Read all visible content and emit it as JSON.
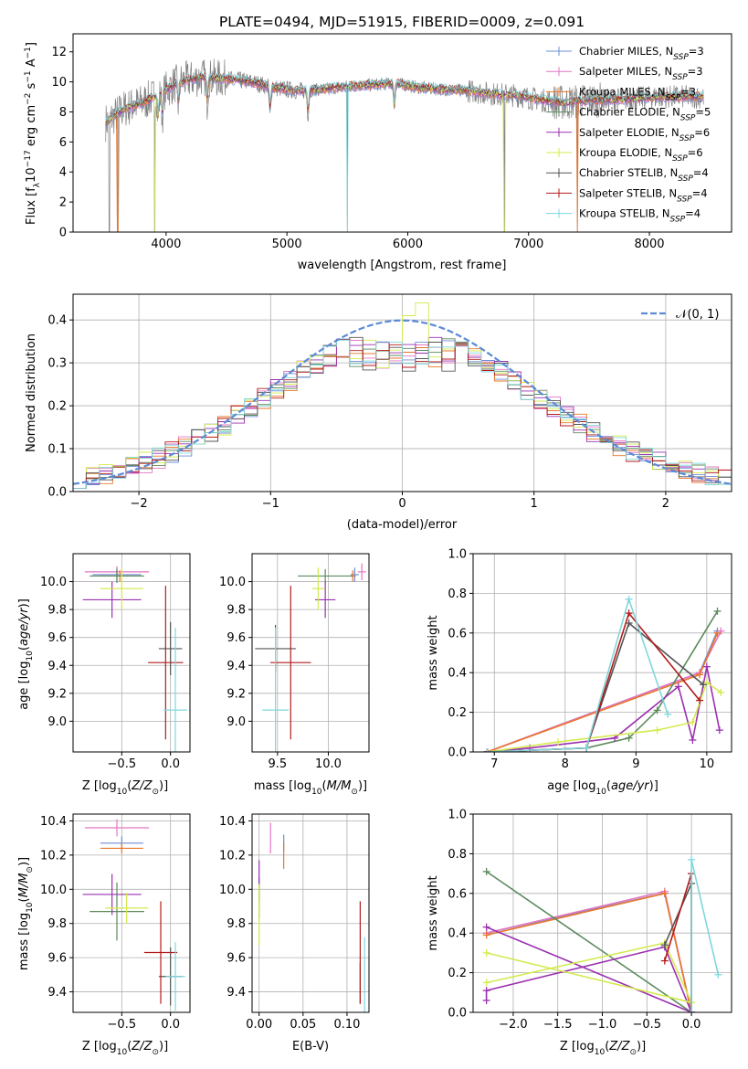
{
  "figure": {
    "title": "PLATE=0494, MJD=51915, FIBERID=0009, z=0.091"
  },
  "colors": {
    "spectrum": "#808080",
    "gaussian": "#5b8ad7",
    "series": [
      "#6b8fd6",
      "#e377c2",
      "#e8762b",
      "#5c8a5c",
      "#9b30b0",
      "#d4ea4e",
      "#555555",
      "#b31b1b",
      "#7fd7dc"
    ]
  },
  "chart_data": [
    {
      "type": "line",
      "id": "spectrum",
      "title": "PLATE=0494, MJD=51915, FIBERID=0009, z=0.091",
      "xlabel": "wavelength [Angstrom, rest frame]",
      "ylabel": "Flux [f_λ 10^−17 erg cm^−2 s^−1 A^−1]",
      "xlim": [
        3230,
        8680
      ],
      "ylim": [
        0,
        13.2
      ],
      "xticks": [
        4000,
        5000,
        6000,
        7000,
        8000
      ],
      "yticks": [
        0,
        2,
        4,
        6,
        8,
        10,
        12
      ],
      "grid": false,
      "legend_position": "top-right",
      "legend": [
        "Chabrier MILES, N_SSP=3",
        "Salpeter MILES, N_SSP=3",
        "Kroupa MILES, N_SSP=3",
        "Chabrier ELODIE, N_SSP=5",
        "Salpeter ELODIE, N_SSP=6",
        "Kroupa ELODIE, N_SSP=6",
        "Chabrier STELIB, N_SSP=4",
        "Salpeter STELIB, N_SSP=4",
        "Kroupa STELIB, N_SSP=4"
      ],
      "continuum": [
        [
          3500,
          7.3
        ],
        [
          3650,
          8.2
        ],
        [
          3800,
          8.6
        ],
        [
          3950,
          9.2
        ],
        [
          4100,
          10.0
        ],
        [
          4300,
          10.3
        ],
        [
          4500,
          10.2
        ],
        [
          4700,
          10.0
        ],
        [
          4900,
          9.6
        ],
        [
          5100,
          9.4
        ],
        [
          5300,
          9.5
        ],
        [
          5500,
          9.7
        ],
        [
          5700,
          9.8
        ],
        [
          5900,
          9.9
        ],
        [
          6100,
          9.6
        ],
        [
          6300,
          9.5
        ],
        [
          6500,
          9.4
        ],
        [
          6700,
          9.2
        ],
        [
          6900,
          9.1
        ],
        [
          7100,
          8.8
        ],
        [
          7300,
          8.6
        ],
        [
          7500,
          8.8
        ],
        [
          7700,
          8.8
        ],
        [
          7900,
          8.9
        ],
        [
          8100,
          9.0
        ],
        [
          8300,
          9.0
        ],
        [
          8450,
          9.0
        ]
      ],
      "absorption_lines": [
        3934,
        3969,
        4102,
        4340,
        4861,
        5175,
        5890
      ],
      "spikes_to_zero": [
        3530,
        3600,
        3905,
        5500,
        6800,
        7405
      ]
    },
    {
      "type": "line",
      "id": "residuals",
      "xlabel": "(data-model)/error",
      "ylabel": "Normed distribution",
      "xlim": [
        -2.5,
        2.5
      ],
      "ylim": [
        0,
        0.46
      ],
      "xticks": [
        -2,
        -1,
        0,
        1,
        2
      ],
      "yticks": [
        0.0,
        0.1,
        0.2,
        0.3,
        0.4
      ],
      "grid": true,
      "legend_position": "top-right",
      "legend": [
        "𝒩(0, 1)"
      ],
      "histogram": {
        "bin_start": -2.5,
        "bin_width": 0.1,
        "bins": 50,
        "series_count": 9
      }
    },
    {
      "type": "scatter",
      "id": "age-vs-Z",
      "xlabel": "Z [log10(Z/Z⊙)]",
      "ylabel": "age  [log10(age/yr)]",
      "xlim": [
        -1.0,
        0.2
      ],
      "ylim": [
        8.78,
        10.2
      ],
      "xticks": [
        -0.5,
        0.0
      ],
      "yticks": [
        9.0,
        9.2,
        9.4,
        9.6,
        9.8,
        10.0
      ],
      "grid": true,
      "points": [
        {
          "series": 0,
          "x": -0.55,
          "y": 10.05,
          "xerr": 0.25,
          "yerr": 0.05
        },
        {
          "series": 1,
          "x": -0.55,
          "y": 10.07,
          "xerr": 0.33,
          "yerr": 0.04
        },
        {
          "series": 2,
          "x": -0.52,
          "y": 10.04,
          "xerr": 0.22,
          "yerr": 0.04
        },
        {
          "series": 3,
          "x": -0.55,
          "y": 10.04,
          "xerr": 0.28,
          "yerr": 0.05
        },
        {
          "series": 4,
          "x": -0.6,
          "y": 9.87,
          "xerr": 0.3,
          "yerr": 0.13
        },
        {
          "series": 5,
          "x": -0.5,
          "y": 9.95,
          "xerr": 0.22,
          "yerr": 0.15
        },
        {
          "series": 6,
          "x": 0.0,
          "y": 9.52,
          "xerr": 0.12,
          "yerr": 0.19
        },
        {
          "series": 7,
          "x": -0.05,
          "y": 9.42,
          "xerr": 0.18,
          "yerr": 0.55
        },
        {
          "series": 8,
          "x": 0.05,
          "y": 9.08,
          "xerr": 0.12,
          "yerr": 0.59
        }
      ]
    },
    {
      "type": "scatter",
      "id": "age-vs-mass",
      "xlabel": "mass [log10(M/M⊙)]",
      "ylabel": "",
      "xlim": [
        9.25,
        10.4
      ],
      "ylim": [
        8.78,
        10.2
      ],
      "xticks": [
        9.5,
        10.0
      ],
      "yticks": [
        9.0,
        9.2,
        9.4,
        9.6,
        9.8,
        10.0
      ],
      "grid": true,
      "points": [
        {
          "series": 0,
          "x": 10.26,
          "y": 10.05,
          "xerr": 0.04,
          "yerr": 0.05
        },
        {
          "series": 1,
          "x": 10.33,
          "y": 10.07,
          "xerr": 0.04,
          "yerr": 0.06
        },
        {
          "series": 2,
          "x": 10.24,
          "y": 10.04,
          "xerr": 0.03,
          "yerr": 0.04
        },
        {
          "series": 3,
          "x": 9.97,
          "y": 10.04,
          "xerr": 0.27,
          "yerr": 0.05
        },
        {
          "series": 4,
          "x": 9.97,
          "y": 9.87,
          "xerr": 0.1,
          "yerr": 0.13
        },
        {
          "series": 5,
          "x": 9.9,
          "y": 9.95,
          "xerr": 0.06,
          "yerr": 0.15
        },
        {
          "series": 6,
          "x": 9.48,
          "y": 9.52,
          "xerr": 0.2,
          "yerr": 0.17
        },
        {
          "series": 7,
          "x": 9.63,
          "y": 9.42,
          "xerr": 0.2,
          "yerr": 0.55
        },
        {
          "series": 8,
          "x": 9.48,
          "y": 9.08,
          "xerr": 0.13,
          "yerr": 0.59
        }
      ]
    },
    {
      "type": "line",
      "id": "mass-weight-vs-age",
      "xlabel": "age  [log10(age/yr)]",
      "ylabel": "mass weight",
      "xlim": [
        6.7,
        10.35
      ],
      "ylim": [
        0.0,
        1.0
      ],
      "xticks": [
        7,
        8,
        9,
        10
      ],
      "yticks": [
        0.0,
        0.2,
        0.4,
        0.6,
        0.8,
        1.0
      ],
      "grid": true,
      "series": [
        {
          "points": [
            [
              6.9,
              0.0
            ],
            [
              9.9,
              0.4
            ],
            [
              10.15,
              0.61
            ]
          ]
        },
        {
          "points": [
            [
              6.9,
              0.0
            ],
            [
              9.9,
              0.4
            ],
            [
              10.2,
              0.61
            ]
          ]
        },
        {
          "points": [
            [
              6.9,
              0.0
            ],
            [
              9.9,
              0.39
            ],
            [
              10.15,
              0.6
            ]
          ]
        },
        {
          "points": [
            [
              6.9,
              0.0
            ],
            [
              8.3,
              0.02
            ],
            [
              8.9,
              0.07
            ],
            [
              9.3,
              0.21
            ],
            [
              10.15,
              0.71
            ]
          ]
        },
        {
          "points": [
            [
              6.9,
              0.0
            ],
            [
              7.5,
              0.02
            ],
            [
              8.7,
              0.07
            ],
            [
              9.6,
              0.33
            ],
            [
              9.8,
              0.06
            ],
            [
              10.0,
              0.43
            ],
            [
              10.18,
              0.11
            ]
          ]
        },
        {
          "points": [
            [
              6.9,
              0.0
            ],
            [
              7.9,
              0.05
            ],
            [
              9.3,
              0.11
            ],
            [
              9.8,
              0.15
            ],
            [
              10.0,
              0.35
            ],
            [
              10.2,
              0.3
            ]
          ]
        },
        {
          "points": [
            [
              6.9,
              0.0
            ],
            [
              8.3,
              0.02
            ],
            [
              8.9,
              0.65
            ],
            [
              9.95,
              0.34
            ]
          ]
        },
        {
          "points": [
            [
              6.9,
              0.0
            ],
            [
              8.3,
              0.02
            ],
            [
              8.9,
              0.7
            ],
            [
              9.9,
              0.26
            ]
          ]
        },
        {
          "points": [
            [
              6.9,
              0.0
            ],
            [
              8.3,
              0.02
            ],
            [
              8.9,
              0.77
            ],
            [
              9.45,
              0.19
            ]
          ]
        }
      ]
    },
    {
      "type": "scatter",
      "id": "mass-vs-Z",
      "xlabel": "Z [log10(Z/Z⊙)]",
      "ylabel": "mass [log10(M/M⊙)]",
      "xlim": [
        -1.0,
        0.2
      ],
      "ylim": [
        9.28,
        10.44
      ],
      "xticks": [
        -0.5,
        0.0
      ],
      "yticks": [
        9.4,
        9.6,
        9.8,
        10.0,
        10.2,
        10.4
      ],
      "grid": true,
      "points": [
        {
          "series": 0,
          "x": -0.5,
          "y": 10.27,
          "xerr": 0.22,
          "yerr": 0.04
        },
        {
          "series": 1,
          "x": -0.55,
          "y": 10.36,
          "xerr": 0.33,
          "yerr": 0.05
        },
        {
          "series": 2,
          "x": -0.5,
          "y": 10.24,
          "xerr": 0.22,
          "yerr": 0.03
        },
        {
          "series": 3,
          "x": -0.55,
          "y": 9.87,
          "xerr": 0.28,
          "yerr": 0.17
        },
        {
          "series": 4,
          "x": -0.6,
          "y": 9.97,
          "xerr": 0.3,
          "yerr": 0.12
        },
        {
          "series": 5,
          "x": -0.45,
          "y": 9.89,
          "xerr": 0.22,
          "yerr": 0.09
        },
        {
          "series": 6,
          "x": 0.0,
          "y": 9.49,
          "xerr": 0.12,
          "yerr": 0.17
        },
        {
          "series": 7,
          "x": -0.1,
          "y": 9.63,
          "xerr": 0.17,
          "yerr": 0.3
        },
        {
          "series": 8,
          "x": 0.05,
          "y": 9.49,
          "xerr": 0.1,
          "yerr": 0.2
        }
      ]
    },
    {
      "type": "scatter",
      "id": "mass-vs-EBV",
      "xlabel": "E(B-V)",
      "ylabel": "",
      "xlim": [
        -0.008,
        0.125
      ],
      "ylim": [
        9.28,
        10.44
      ],
      "xticks": [
        0.0,
        0.05,
        0.1
      ],
      "yticks": [
        9.4,
        9.6,
        9.8,
        10.0,
        10.2,
        10.4
      ],
      "grid": true,
      "points": [
        {
          "series": 0,
          "x": 0.028,
          "y": 10.27,
          "xerr": 0.0,
          "yerr": 0.05
        },
        {
          "series": 1,
          "x": 0.013,
          "y": 10.3,
          "xerr": 0.0,
          "yerr": 0.09
        },
        {
          "series": 2,
          "x": 0.028,
          "y": 10.2,
          "xerr": 0.0,
          "yerr": 0.08
        },
        {
          "series": 3,
          "x": 0.0,
          "y": 9.95,
          "xerr": 0.0,
          "yerr": 0.12
        },
        {
          "series": 4,
          "x": 0.0,
          "y": 10.05,
          "xerr": 0.0,
          "yerr": 0.12
        },
        {
          "series": 5,
          "x": 0.0,
          "y": 9.85,
          "xerr": 0.0,
          "yerr": 0.18
        },
        {
          "series": 6,
          "x": 0.115,
          "y": 9.45,
          "xerr": 0.0,
          "yerr": 0.12
        },
        {
          "series": 7,
          "x": 0.115,
          "y": 9.63,
          "xerr": 0.0,
          "yerr": 0.3
        },
        {
          "series": 8,
          "x": 0.12,
          "y": 9.5,
          "xerr": 0.0,
          "yerr": 0.22
        }
      ]
    },
    {
      "type": "line",
      "id": "mass-weight-vs-Z",
      "xlabel": "Z [log10(Z/Z⊙)]",
      "ylabel": "mass weight",
      "xlim": [
        -2.45,
        0.45
      ],
      "ylim": [
        0.0,
        1.0
      ],
      "xticks": [
        -2.0,
        -1.5,
        -1.0,
        -0.5,
        0.0
      ],
      "yticks": [
        0.0,
        0.2,
        0.4,
        0.6,
        0.8,
        1.0
      ],
      "grid": true,
      "series": [
        {
          "points": [
            [
              -2.3,
              0.4
            ],
            [
              -0.3,
              0.6
            ],
            [
              0.0,
              0.0
            ]
          ]
        },
        {
          "points": [
            [
              -2.3,
              0.4
            ],
            [
              -0.3,
              0.61
            ],
            [
              0.0,
              0.0
            ]
          ]
        },
        {
          "points": [
            [
              -2.3,
              0.39
            ],
            [
              -0.3,
              0.6
            ],
            [
              0.0,
              0.0
            ]
          ]
        },
        {
          "points": [
            [
              -2.3,
              0.71
            ],
            [
              0.0,
              0.0
            ]
          ]
        },
        {
          "points": [
            [
              -2.3,
              0.06
            ],
            [
              -2.3,
              0.11
            ],
            [
              -0.3,
              0.33
            ],
            [
              0.0,
              0.0
            ],
            [
              -2.3,
              0.43
            ]
          ]
        },
        {
          "points": [
            [
              -2.3,
              0.15
            ],
            [
              -0.3,
              0.35
            ],
            [
              0.0,
              0.05
            ],
            [
              -2.3,
              0.3
            ]
          ]
        },
        {
          "points": [
            [
              -0.3,
              0.34
            ],
            [
              0.0,
              0.65
            ],
            [
              0.0,
              0.0
            ]
          ]
        },
        {
          "points": [
            [
              -0.3,
              0.26
            ],
            [
              0.0,
              0.7
            ],
            [
              0.0,
              0.0
            ]
          ]
        },
        {
          "points": [
            [
              0.0,
              0.0
            ],
            [
              0.0,
              0.77
            ],
            [
              0.3,
              0.19
            ]
          ]
        }
      ]
    }
  ]
}
